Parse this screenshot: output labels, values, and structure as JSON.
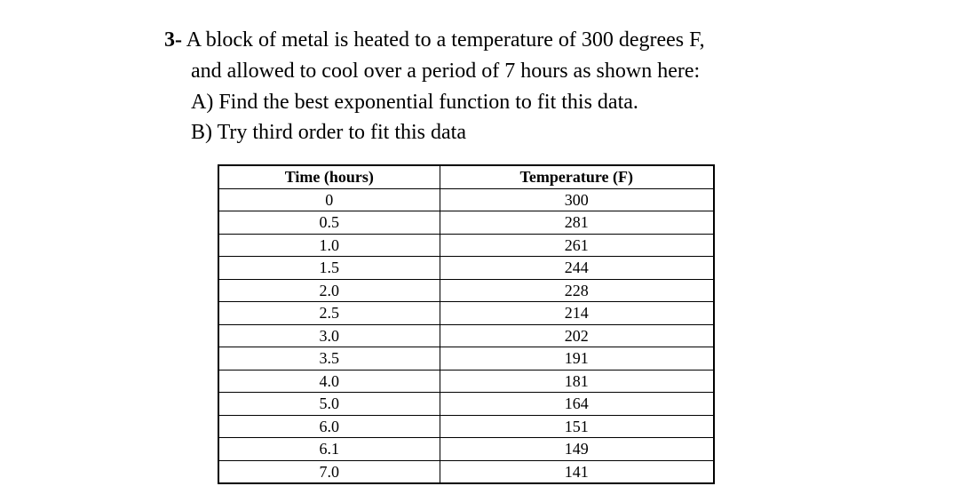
{
  "problem": {
    "number": "3-",
    "line1": "A block of metal is heated to a temperature of 300 degrees F,",
    "line2": "and allowed to cool over a period of 7 hours as shown here:",
    "partA": "A) Find the best exponential function to fit this data.",
    "partB": "B) Try third order to fit this data"
  },
  "table": {
    "columns": [
      "Time (hours)",
      "Temperature (F)"
    ],
    "rows": [
      [
        "0",
        "300"
      ],
      [
        "0.5",
        "281"
      ],
      [
        "1.0",
        "261"
      ],
      [
        "1.5",
        "244"
      ],
      [
        "2.0",
        "228"
      ],
      [
        "2.5",
        "214"
      ],
      [
        "3.0",
        "202"
      ],
      [
        "3.5",
        "191"
      ],
      [
        "4.0",
        "181"
      ],
      [
        "5.0",
        "164"
      ],
      [
        "6.0",
        "151"
      ],
      [
        "6.1",
        "149"
      ],
      [
        "7.0",
        "141"
      ]
    ],
    "header_fontweight": "bold",
    "border_color": "#000000",
    "background_color": "#ffffff",
    "font_size_body": 18,
    "font_size_header": 18
  }
}
